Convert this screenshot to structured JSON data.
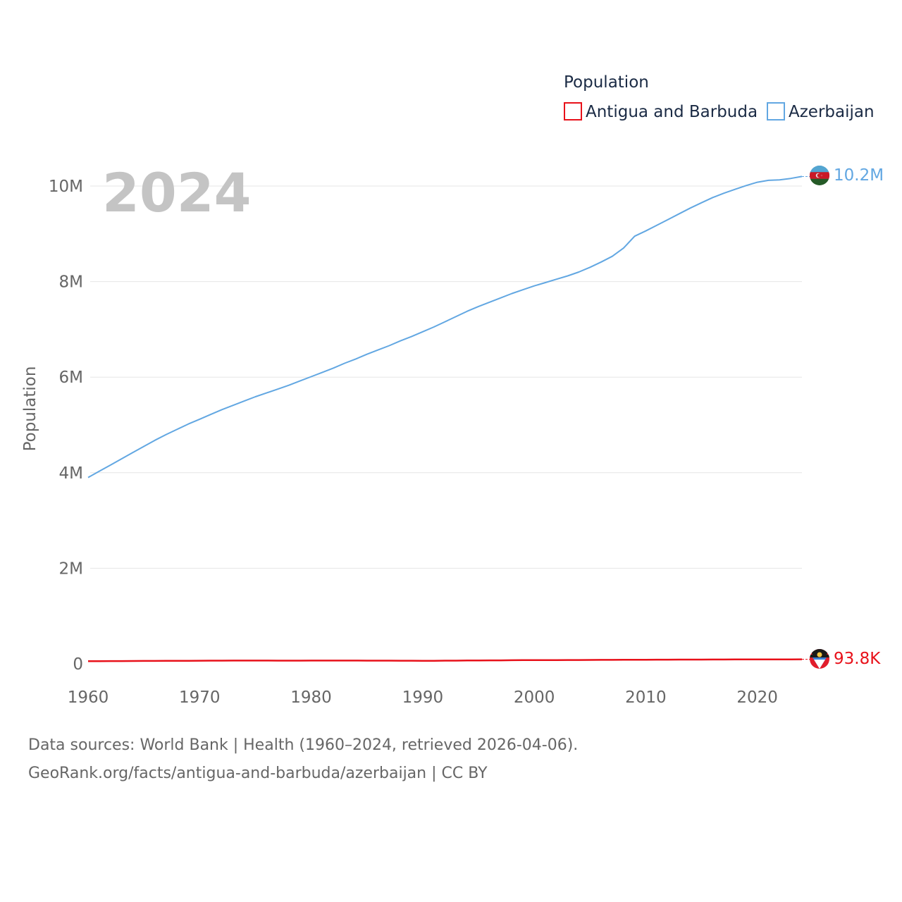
{
  "chart_data": {
    "type": "line",
    "ylabel": "Population",
    "legend_title": "Population",
    "legend_placement": "top-right",
    "year_label": "2024",
    "x_ticks": [
      "1960",
      "1970",
      "1980",
      "1990",
      "2000",
      "2010",
      "2020"
    ],
    "y_ticks": [
      "0",
      "2M",
      "4M",
      "6M",
      "8M",
      "10M"
    ],
    "y_tick_values": [
      0,
      2000000,
      4000000,
      6000000,
      8000000,
      10000000
    ],
    "xlim": [
      1960,
      2024
    ],
    "ylim": [
      0,
      10500000
    ],
    "grid": true,
    "x": [
      1960,
      1961,
      1962,
      1963,
      1964,
      1965,
      1966,
      1967,
      1968,
      1969,
      1970,
      1971,
      1972,
      1973,
      1974,
      1975,
      1976,
      1977,
      1978,
      1979,
      1980,
      1981,
      1982,
      1983,
      1984,
      1985,
      1986,
      1987,
      1988,
      1989,
      1990,
      1991,
      1992,
      1993,
      1994,
      1995,
      1996,
      1997,
      1998,
      1999,
      2000,
      2001,
      2002,
      2003,
      2004,
      2005,
      2006,
      2007,
      2008,
      2009,
      2010,
      2011,
      2012,
      2013,
      2014,
      2015,
      2016,
      2017,
      2018,
      2019,
      2020,
      2021,
      2022,
      2023,
      2024
    ],
    "series": [
      {
        "name": "Antigua and Barbuda",
        "color": "#e8111a",
        "end_label": "93.8K",
        "values": [
          55000,
          56000,
          57000,
          58000,
          59000,
          60000,
          61000,
          62000,
          63000,
          64000,
          65000,
          66000,
          67000,
          67500,
          68000,
          68000,
          67500,
          67000,
          67000,
          67000,
          67500,
          68000,
          68000,
          68000,
          67500,
          67000,
          66500,
          66000,
          65500,
          65000,
          63000,
          64000,
          66000,
          67000,
          69000,
          70000,
          72000,
          73000,
          75000,
          77000,
          76000,
          77000,
          78000,
          79000,
          80000,
          81000,
          82000,
          83000,
          84000,
          85000,
          86000,
          87000,
          87500,
          88000,
          88500,
          89000,
          90000,
          90500,
          91000,
          91500,
          92000,
          92500,
          93000,
          93400,
          93800
        ]
      },
      {
        "name": "Azerbaijan",
        "color": "#62a7e2",
        "end_label": "10.2M",
        "values": [
          3900000,
          4030000,
          4160000,
          4290000,
          4420000,
          4550000,
          4680000,
          4800000,
          4910000,
          5020000,
          5120000,
          5220000,
          5320000,
          5410000,
          5500000,
          5590000,
          5670000,
          5750000,
          5830000,
          5920000,
          6010000,
          6100000,
          6190000,
          6290000,
          6380000,
          6480000,
          6570000,
          6660000,
          6760000,
          6850000,
          6950000,
          7050000,
          7160000,
          7270000,
          7380000,
          7480000,
          7570000,
          7660000,
          7750000,
          7830000,
          7910000,
          7980000,
          8050000,
          8120000,
          8200000,
          8300000,
          8410000,
          8530000,
          8700000,
          8950000,
          9060000,
          9180000,
          9300000,
          9420000,
          9540000,
          9650000,
          9760000,
          9850000,
          9930000,
          10010000,
          10080000,
          10120000,
          10130000,
          10160000,
          10200000
        ]
      }
    ]
  },
  "source_line1": "Data sources: World Bank | Health (1960–2024, retrieved 2026-04-06).",
  "source_line2": "GeoRank.org/facts/antigua-and-barbuda/azerbaijan | CC BY"
}
